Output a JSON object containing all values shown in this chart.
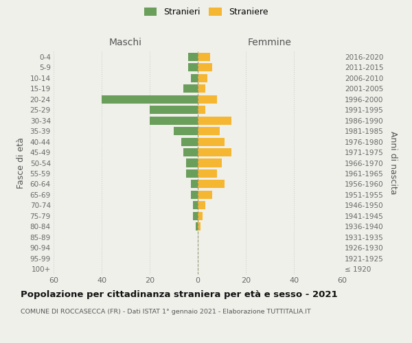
{
  "age_groups": [
    "100+",
    "95-99",
    "90-94",
    "85-89",
    "80-84",
    "75-79",
    "70-74",
    "65-69",
    "60-64",
    "55-59",
    "50-54",
    "45-49",
    "40-44",
    "35-39",
    "30-34",
    "25-29",
    "20-24",
    "15-19",
    "10-14",
    "5-9",
    "0-4"
  ],
  "birth_years": [
    "≤ 1920",
    "1921-1925",
    "1926-1930",
    "1931-1935",
    "1936-1940",
    "1941-1945",
    "1946-1950",
    "1951-1955",
    "1956-1960",
    "1961-1965",
    "1966-1970",
    "1971-1975",
    "1976-1980",
    "1981-1985",
    "1986-1990",
    "1991-1995",
    "1996-2000",
    "2001-2005",
    "2006-2010",
    "2011-2015",
    "2016-2020"
  ],
  "maschi": [
    0,
    0,
    0,
    0,
    1,
    2,
    2,
    3,
    3,
    5,
    5,
    6,
    7,
    10,
    20,
    20,
    40,
    6,
    3,
    4,
    4
  ],
  "femmine": [
    0,
    0,
    0,
    0,
    1,
    2,
    3,
    6,
    11,
    8,
    10,
    14,
    11,
    9,
    14,
    3,
    8,
    3,
    4,
    6,
    5
  ],
  "maschi_color": "#6a9e5b",
  "femmine_color": "#f5b731",
  "title": "Popolazione per cittadinanza straniera per età e sesso - 2021",
  "subtitle": "COMUNE DI ROCCASECCA (FR) - Dati ISTAT 1° gennaio 2021 - Elaborazione TUTTITALIA.IT",
  "xlabel_left": "Maschi",
  "xlabel_right": "Femmine",
  "ylabel_left": "Fasce di età",
  "ylabel_right": "Anni di nascita",
  "legend_stranieri": "Stranieri",
  "legend_straniere": "Straniere",
  "xlim": 60,
  "background_color": "#f0f0eb",
  "grid_color": "#cccccc"
}
